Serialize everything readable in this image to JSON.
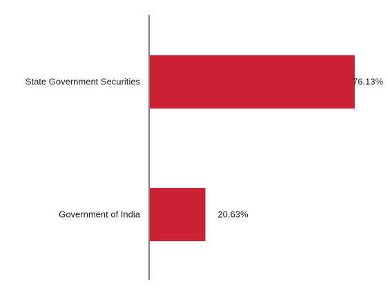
{
  "chart_data": {
    "type": "bar",
    "orientation": "horizontal",
    "title": "",
    "xlabel": "",
    "ylabel": "",
    "categories": [
      "State Government Securities",
      "Government of India"
    ],
    "values": [
      76.13,
      20.63
    ],
    "value_labels": [
      "76.13%",
      "20.63%"
    ],
    "xlim": [
      0,
      100
    ],
    "grid": false,
    "legend": "none",
    "bar_color": "#cc2035",
    "axis_color": "#808080"
  }
}
